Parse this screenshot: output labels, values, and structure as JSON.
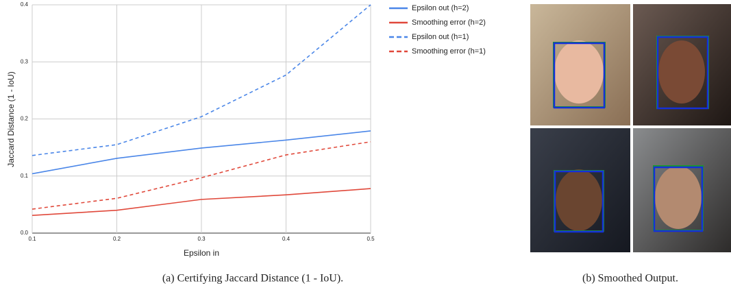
{
  "chart_data": {
    "type": "line",
    "xlabel": "Epsilon in",
    "ylabel": "Jaccard Distance (1 - IoU)",
    "x": [
      0.1,
      0.2,
      0.3,
      0.4,
      0.5
    ],
    "series": [
      {
        "name": "Epsilon out (h=2)",
        "color": "#4a86e8",
        "dash": false,
        "values": [
          0.104,
          0.131,
          0.149,
          0.163,
          0.179
        ]
      },
      {
        "name": "Smoothing error (h=2)",
        "color": "#e0483a",
        "dash": false,
        "values": [
          0.031,
          0.04,
          0.059,
          0.067,
          0.078
        ]
      },
      {
        "name": "Epsilon out (h=1)",
        "color": "#4a86e8",
        "dash": true,
        "values": [
          0.136,
          0.155,
          0.204,
          0.277,
          0.4
        ]
      },
      {
        "name": "Smoothing error (h=1)",
        "color": "#e0483a",
        "dash": true,
        "values": [
          0.042,
          0.061,
          0.097,
          0.137,
          0.16
        ]
      }
    ],
    "xlim": [
      0.1,
      0.5
    ],
    "xticks": [
      0.1,
      0.2,
      0.3,
      0.4,
      0.5
    ],
    "ylim": [
      0,
      0.4
    ],
    "yticks": [
      {
        "value": 0,
        "label": "0.0"
      },
      0.1,
      0.2,
      0.3,
      0.4
    ],
    "grid": true,
    "legend": "right"
  },
  "captions": [
    "(a) Certifying Jaccard Distance (1 - IoU).",
    "(b) Smoothed Output."
  ]
}
